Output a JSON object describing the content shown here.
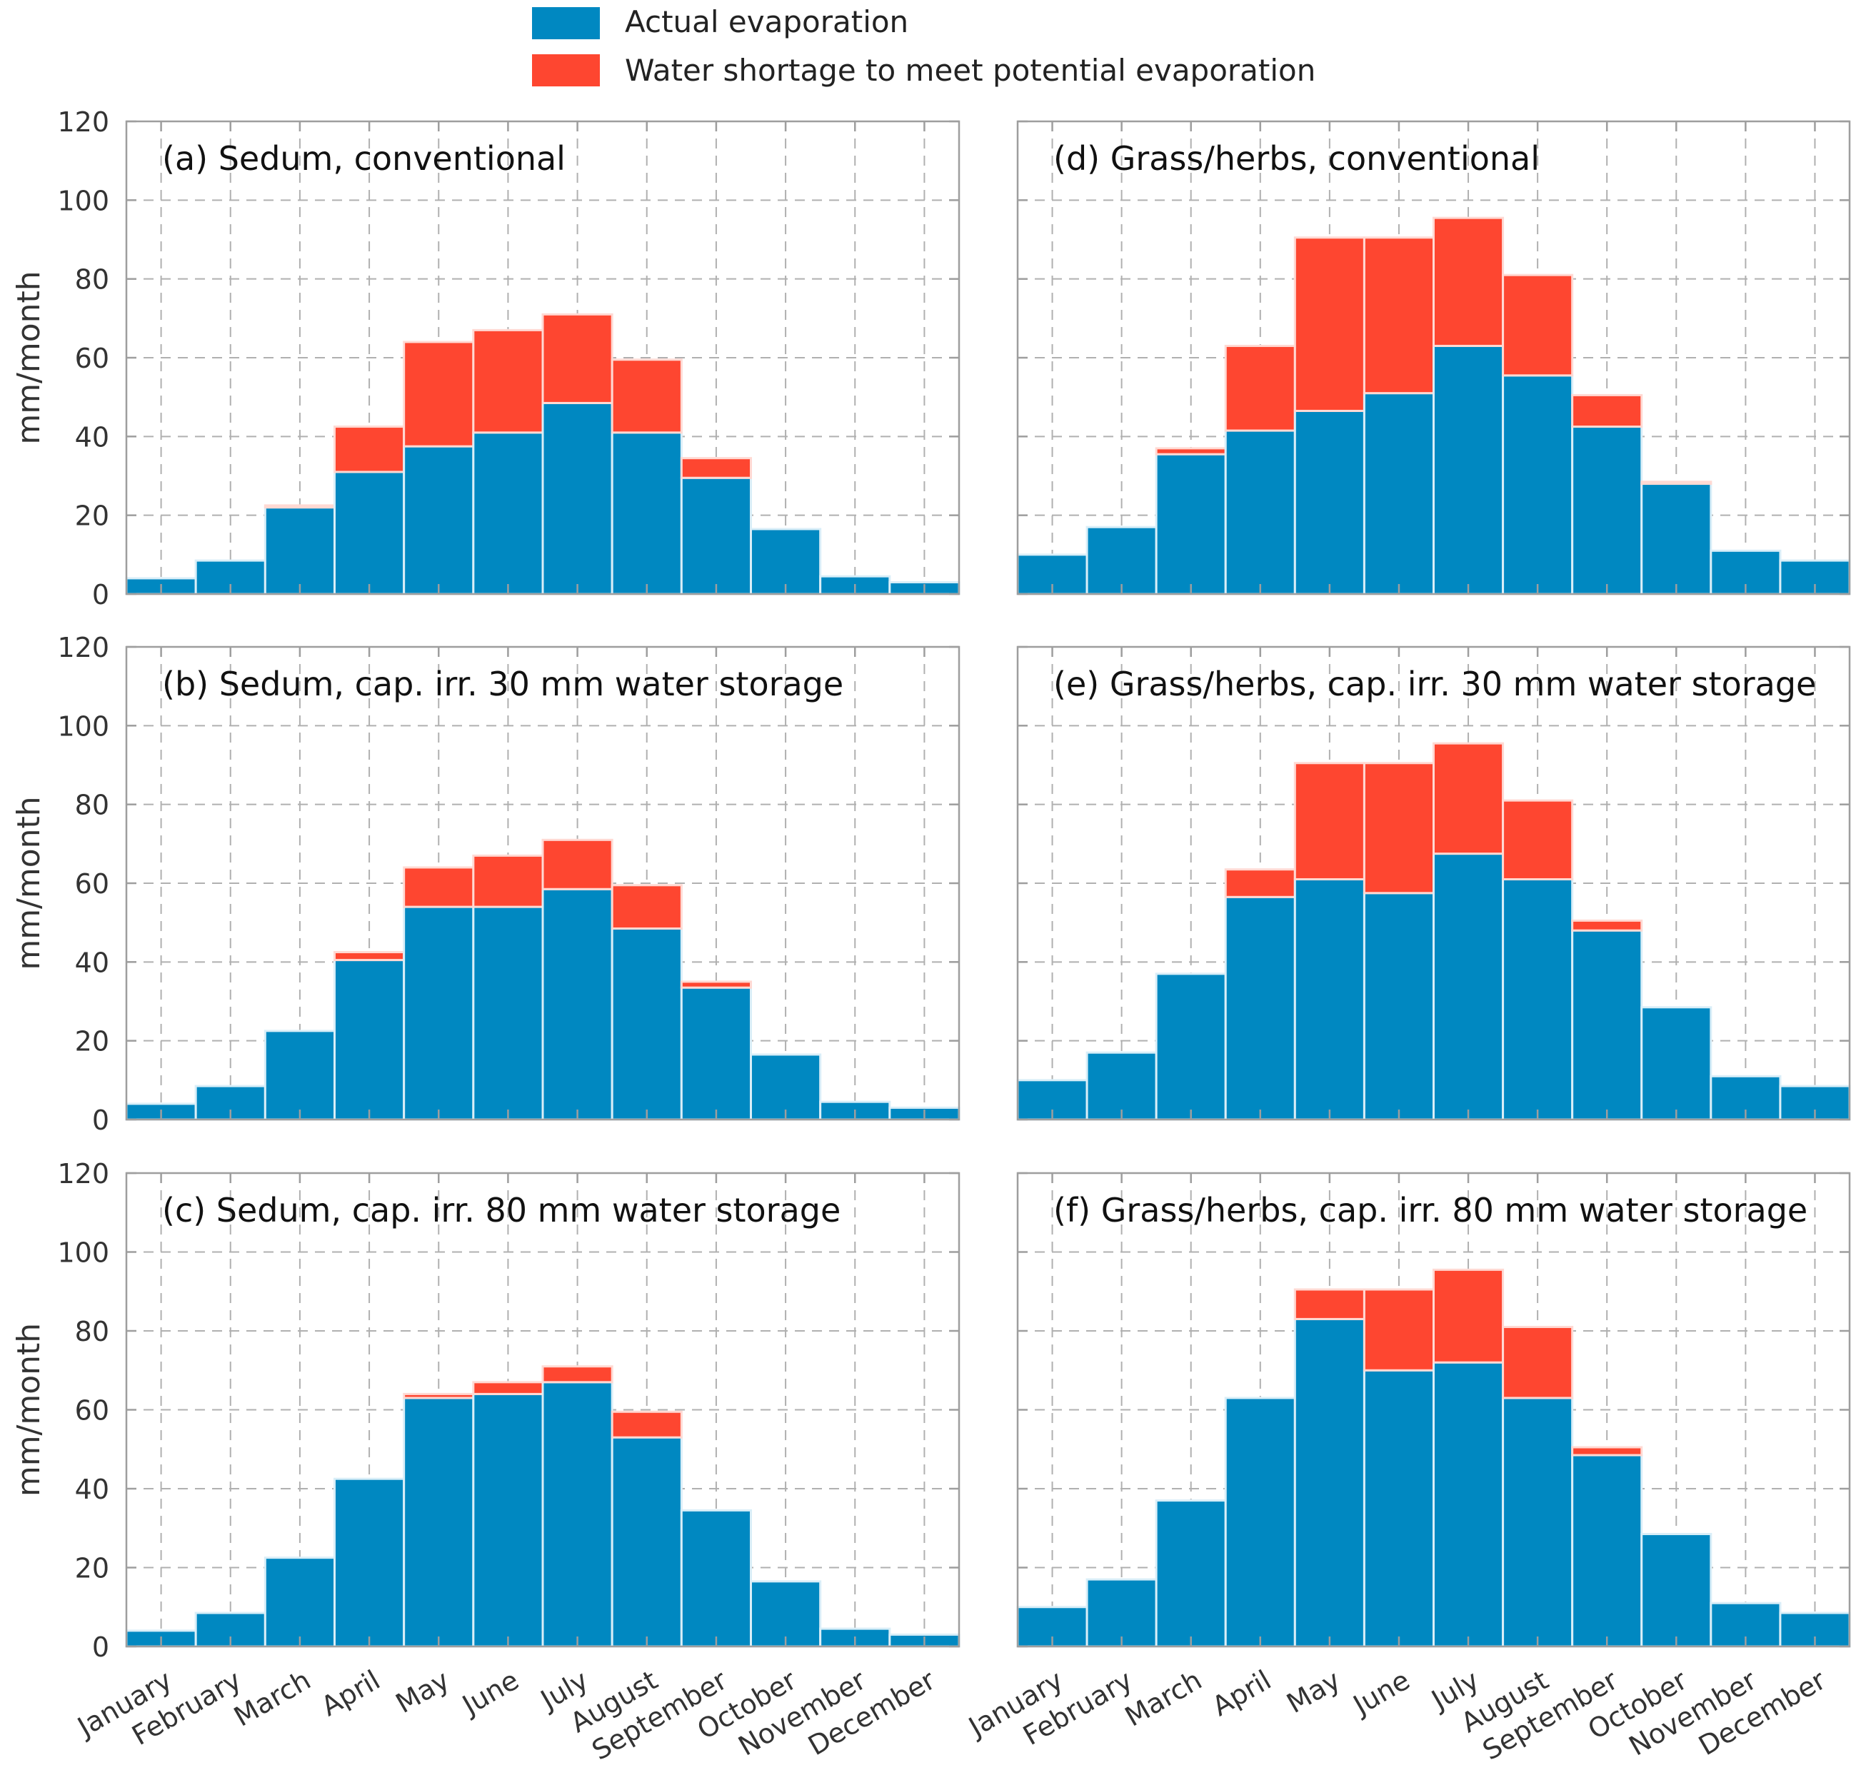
{
  "legend": {
    "items": [
      {
        "label": "Actual evaporation",
        "color": "#0088c1"
      },
      {
        "label": "Water shortage to meet potential evaporation",
        "color": "#fe4630"
      }
    ]
  },
  "colors": {
    "actual": "#0088c1",
    "shortage": "#fe4630",
    "axis": "#9e9e9e",
    "grid": "#b0b0b0",
    "text": "#333333"
  },
  "chart_data": [
    {
      "type": "bar",
      "stacked": true,
      "title": "(a) Sedum, conventional",
      "xlabel": "",
      "ylabel": "mm/month",
      "ylim": [
        0,
        120
      ],
      "yticks": [
        0,
        20,
        40,
        60,
        80,
        100,
        120
      ],
      "categories": [
        "January",
        "February",
        "March",
        "April",
        "May",
        "June",
        "July",
        "August",
        "September",
        "October",
        "November",
        "December"
      ],
      "series": [
        {
          "name": "Actual evaporation",
          "values": [
            4,
            8.5,
            22,
            31,
            37.5,
            41,
            48.5,
            41,
            29.5,
            16.5,
            4.5,
            3
          ]
        },
        {
          "name": "Water shortage to meet potential evaporation",
          "values": [
            0,
            0,
            0.5,
            11.5,
            26.5,
            26,
            22.5,
            18.5,
            5,
            0,
            0,
            0
          ]
        }
      ]
    },
    {
      "type": "bar",
      "stacked": true,
      "title": "(b) Sedum, cap. irr. 30 mm water storage",
      "xlabel": "",
      "ylabel": "mm/month",
      "ylim": [
        0,
        120
      ],
      "yticks": [
        0,
        20,
        40,
        60,
        80,
        100,
        120
      ],
      "categories": [
        "January",
        "February",
        "March",
        "April",
        "May",
        "June",
        "July",
        "August",
        "September",
        "October",
        "November",
        "December"
      ],
      "series": [
        {
          "name": "Actual evaporation",
          "values": [
            4,
            8.5,
            22.5,
            40.5,
            54,
            54,
            58.5,
            48.5,
            33.5,
            16.5,
            4.5,
            3
          ]
        },
        {
          "name": "Water shortage to meet potential evaporation",
          "values": [
            0,
            0,
            0,
            2,
            10,
            13,
            12.5,
            11,
            1.5,
            0,
            0,
            0
          ]
        }
      ]
    },
    {
      "type": "bar",
      "stacked": true,
      "title": "(c) Sedum, cap. irr. 80 mm water storage",
      "xlabel": "",
      "ylabel": "mm/month",
      "ylim": [
        0,
        120
      ],
      "yticks": [
        0,
        20,
        40,
        60,
        80,
        100,
        120
      ],
      "categories": [
        "January",
        "February",
        "March",
        "April",
        "May",
        "June",
        "July",
        "August",
        "September",
        "October",
        "November",
        "December"
      ],
      "series": [
        {
          "name": "Actual evaporation",
          "values": [
            4,
            8.5,
            22.5,
            42.5,
            63,
            64,
            67,
            53,
            34.5,
            16.5,
            4.5,
            3
          ]
        },
        {
          "name": "Water shortage to meet potential evaporation",
          "values": [
            0,
            0,
            0,
            0,
            1,
            3,
            4,
            6.5,
            0,
            0,
            0,
            0
          ]
        }
      ]
    },
    {
      "type": "bar",
      "stacked": true,
      "title": "(d) Grass/herbs, conventional",
      "xlabel": "",
      "ylabel": "",
      "ylim": [
        0,
        120
      ],
      "yticks": [
        0,
        20,
        40,
        60,
        80,
        100,
        120
      ],
      "categories": [
        "January",
        "February",
        "March",
        "April",
        "May",
        "June",
        "July",
        "August",
        "September",
        "October",
        "November",
        "December"
      ],
      "series": [
        {
          "name": "Actual evaporation",
          "values": [
            10,
            17,
            35.5,
            41.5,
            46.5,
            51,
            63,
            55.5,
            42.5,
            28,
            11,
            8.5
          ]
        },
        {
          "name": "Water shortage to meet potential evaporation",
          "values": [
            0,
            0,
            1.5,
            21.5,
            44,
            39.5,
            32.5,
            25.5,
            8,
            0.5,
            0,
            0
          ]
        }
      ]
    },
    {
      "type": "bar",
      "stacked": true,
      "title": "(e) Grass/herbs, cap. irr. 30 mm water storage",
      "xlabel": "",
      "ylabel": "",
      "ylim": [
        0,
        120
      ],
      "yticks": [
        0,
        20,
        40,
        60,
        80,
        100,
        120
      ],
      "categories": [
        "January",
        "February",
        "March",
        "April",
        "May",
        "June",
        "July",
        "August",
        "September",
        "October",
        "November",
        "December"
      ],
      "series": [
        {
          "name": "Actual evaporation",
          "values": [
            10,
            17,
            37,
            56.5,
            61,
            57.5,
            67.5,
            61,
            48,
            28.5,
            11,
            8.5
          ]
        },
        {
          "name": "Water shortage to meet potential evaporation",
          "values": [
            0,
            0,
            0,
            7,
            29.5,
            33,
            28,
            20,
            2.5,
            0,
            0,
            0
          ]
        }
      ]
    },
    {
      "type": "bar",
      "stacked": true,
      "title": "(f) Grass/herbs, cap. irr. 80 mm water storage",
      "xlabel": "",
      "ylabel": "",
      "ylim": [
        0,
        120
      ],
      "yticks": [
        0,
        20,
        40,
        60,
        80,
        100,
        120
      ],
      "categories": [
        "January",
        "February",
        "March",
        "April",
        "May",
        "June",
        "July",
        "August",
        "September",
        "October",
        "November",
        "December"
      ],
      "series": [
        {
          "name": "Actual evaporation",
          "values": [
            10,
            17,
            37,
            63,
            83,
            70,
            72,
            63,
            48.5,
            28.5,
            11,
            8.5
          ]
        },
        {
          "name": "Water shortage to meet potential evaporation",
          "values": [
            0,
            0,
            0,
            0,
            7.5,
            20.5,
            23.5,
            18,
            2,
            0,
            0,
            0
          ]
        }
      ]
    }
  ]
}
